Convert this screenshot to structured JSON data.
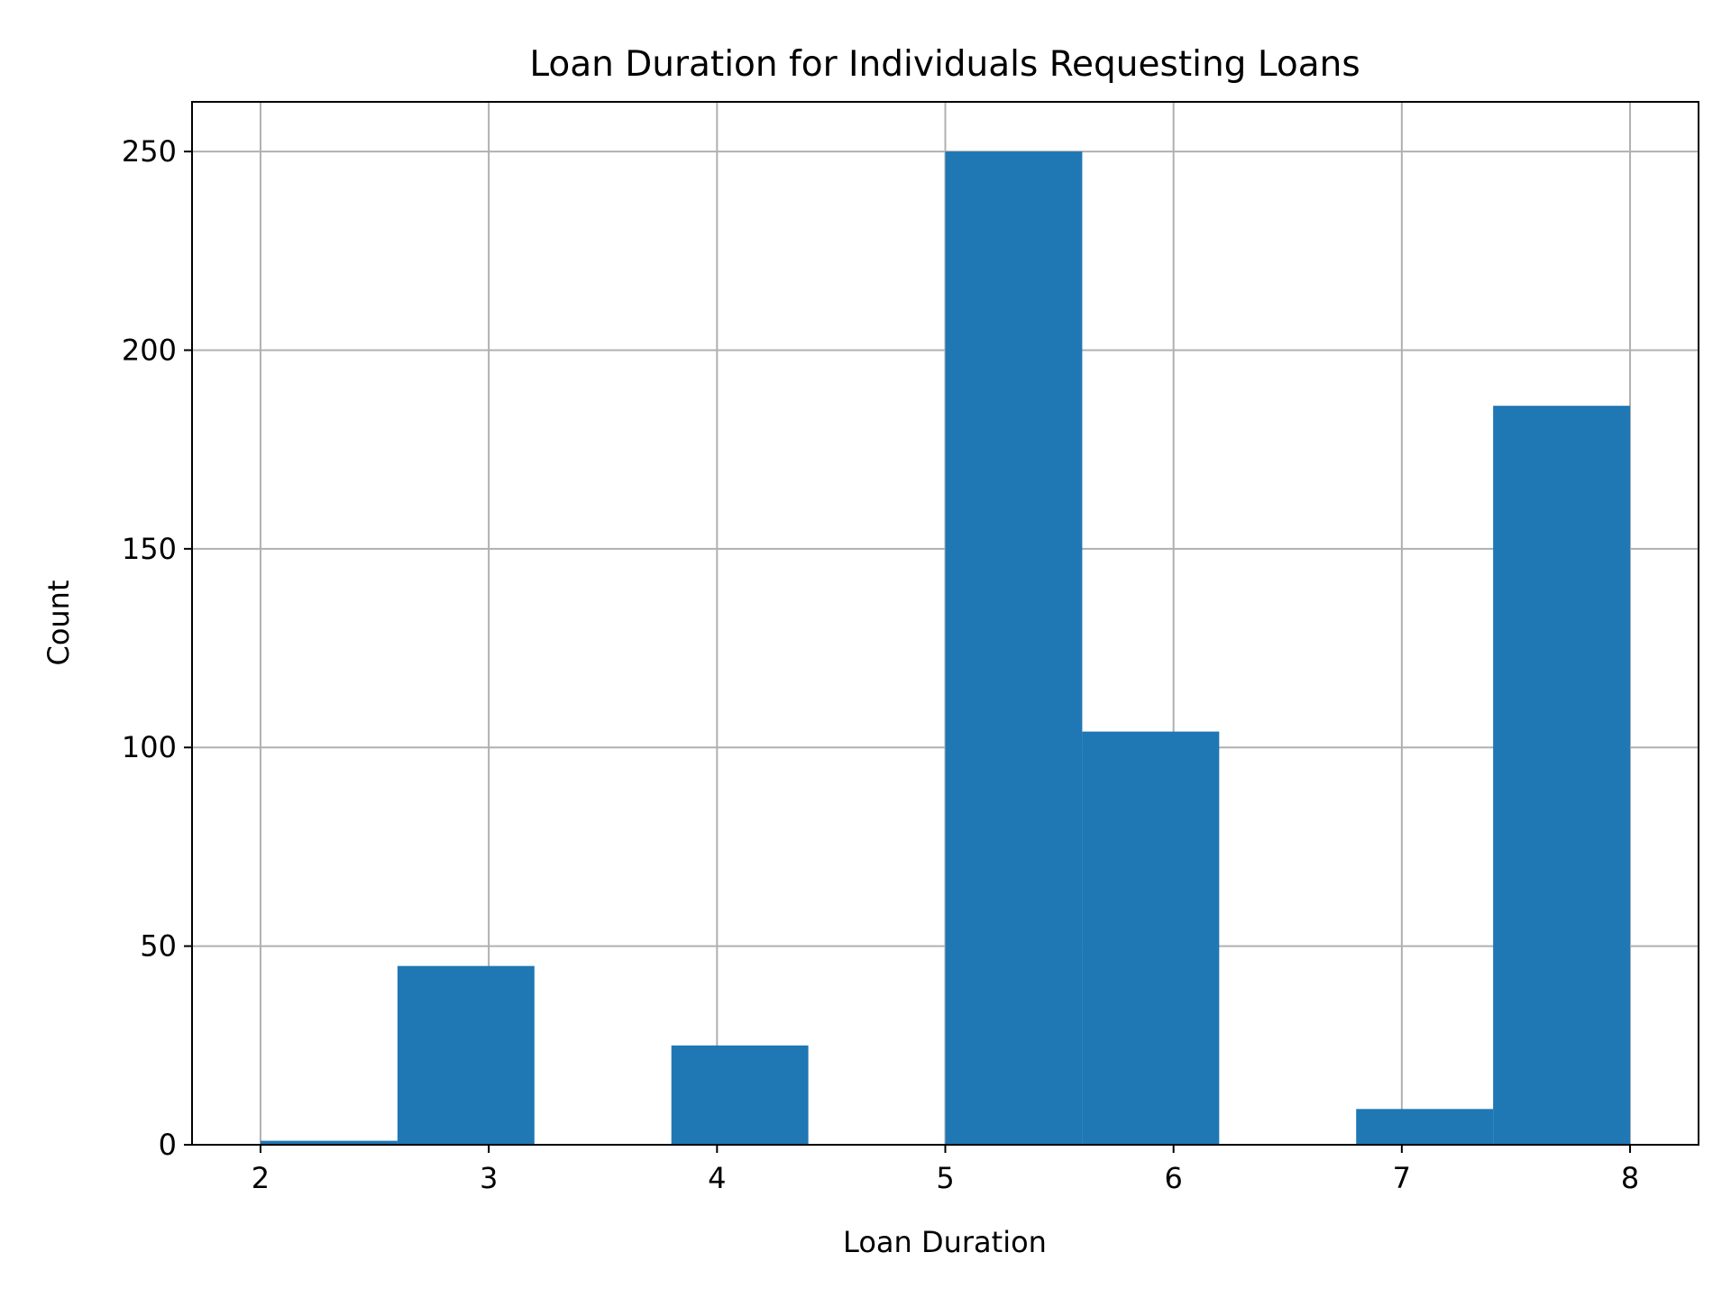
{
  "chart_data": {
    "type": "bar",
    "histogram": true,
    "title": "Loan Duration for Individuals Requesting Loans",
    "xlabel": "Loan Duration",
    "ylabel": "Count",
    "xlim": [
      1.7,
      8.3
    ],
    "ylim": [
      0,
      262.5
    ],
    "xticks": [
      2,
      3,
      4,
      5,
      6,
      7,
      8
    ],
    "yticks": [
      0,
      50,
      100,
      150,
      200,
      250
    ],
    "grid": true,
    "bar_color": "#1f77b4",
    "bins": [
      {
        "start": 2.0,
        "end": 2.6,
        "value": 1
      },
      {
        "start": 2.6,
        "end": 3.2,
        "value": 45
      },
      {
        "start": 3.2,
        "end": 3.8,
        "value": 0
      },
      {
        "start": 3.8,
        "end": 4.4,
        "value": 25
      },
      {
        "start": 4.4,
        "end": 5.0,
        "value": 0
      },
      {
        "start": 5.0,
        "end": 5.6,
        "value": 250
      },
      {
        "start": 5.6,
        "end": 6.2,
        "value": 104
      },
      {
        "start": 6.2,
        "end": 6.8,
        "value": 0
      },
      {
        "start": 6.8,
        "end": 7.4,
        "value": 9
      },
      {
        "start": 7.4,
        "end": 8.0,
        "value": 186
      }
    ]
  }
}
